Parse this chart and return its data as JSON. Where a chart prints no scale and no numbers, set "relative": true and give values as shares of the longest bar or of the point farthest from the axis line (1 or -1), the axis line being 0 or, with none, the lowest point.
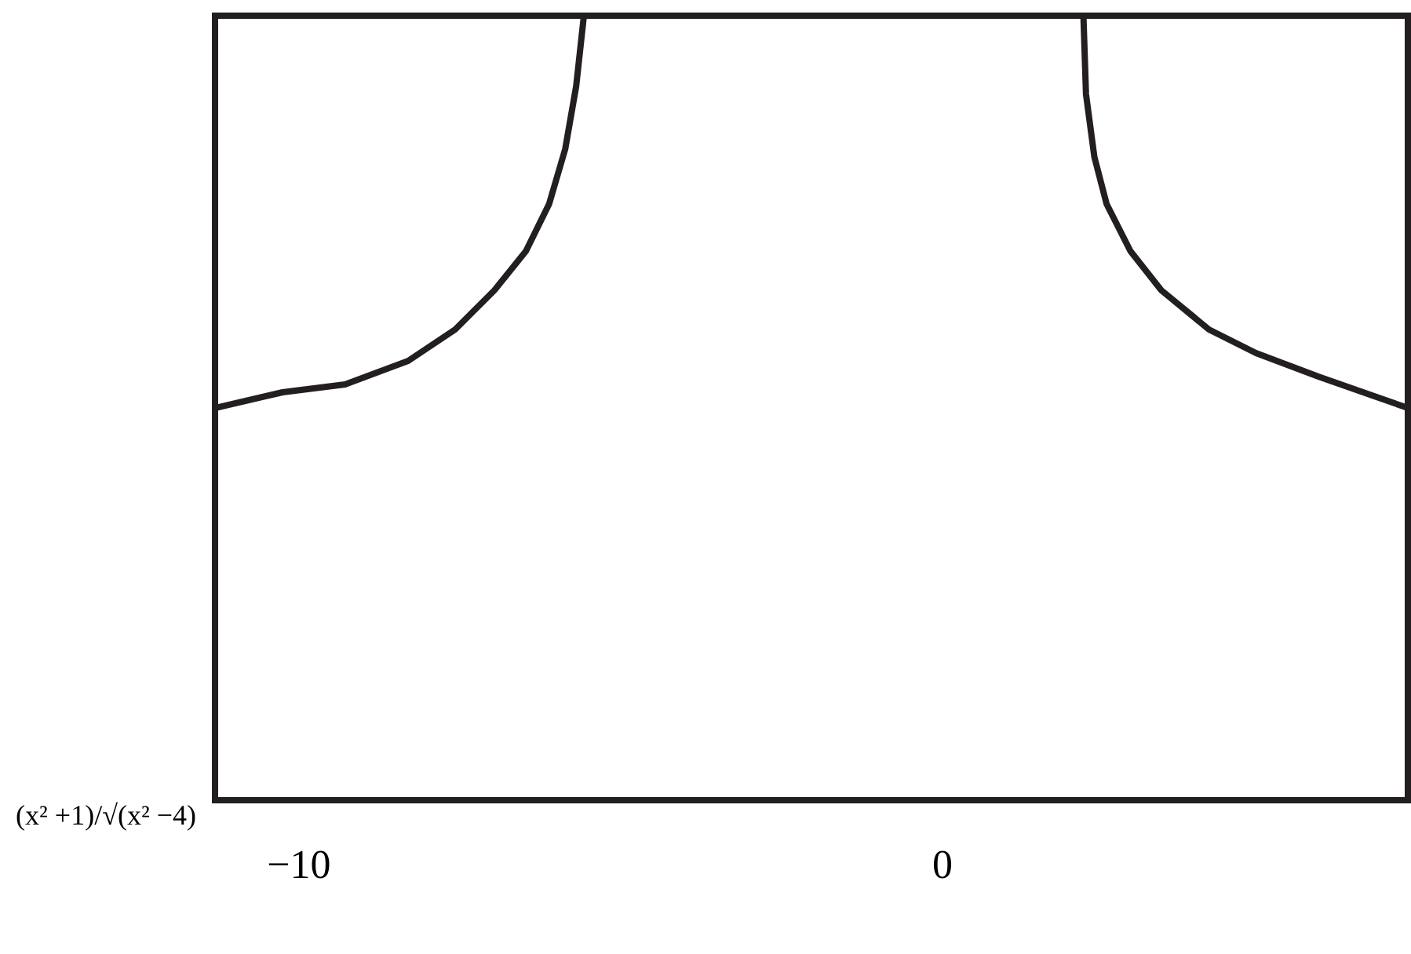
{
  "chart_data": {
    "type": "line",
    "ylabel": "(x² +1)/√(x² −4)",
    "relative": true,
    "xlim": [
      -11.29,
      7.24
    ],
    "xticks": [
      -10,
      0
    ],
    "grid": false,
    "line_style": "solid",
    "marker": "none",
    "series": [
      {
        "color": "#231f20",
        "x": [
          -11.29,
          -10.24,
          -9.27,
          -8.29,
          -7.56,
          -6.95,
          -6.46,
          -6.1,
          -5.85,
          -5.68,
          -5.56
        ],
        "values": [
          0.5,
          0.52,
          0.53,
          0.56,
          0.6,
          0.65,
          0.7,
          0.76,
          0.83,
          0.91,
          1
        ]
      },
      {
        "color": "#231f20",
        "x": [
          2.2,
          2.24,
          2.37,
          2.56,
          2.93,
          3.41,
          4.15,
          4.88,
          5.85,
          7.24
        ],
        "values": [
          1,
          0.9,
          0.82,
          0.76,
          0.7,
          0.65,
          0.6,
          0.57,
          0.54,
          0.5
        ]
      }
    ]
  }
}
